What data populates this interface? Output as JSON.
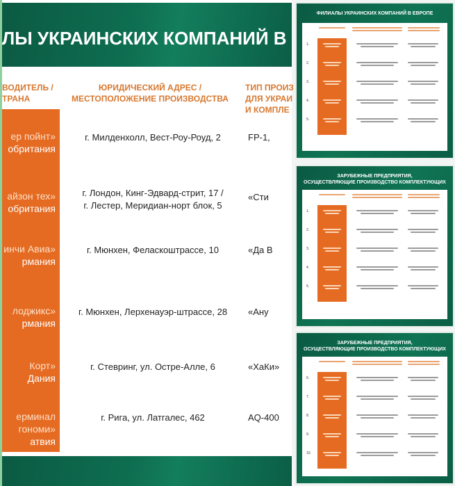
{
  "main_slide": {
    "title": "ЛЫ УКРАИНСКИХ КОМПАНИЙ В",
    "headers": [
      "ВОДИТЕЛЬ /\nТРАНА",
      "ЮРИДИЧЕСКИЙ АДРЕС /\nМЕСТОПОЛОЖЕНИЕ ПРОИЗВОДСТВА",
      "ТИП ПРОИЗ\nДЛЯ УКРАИ\nИ КОМПЛЕ"
    ],
    "rows": [
      {
        "name": "ер пойнт»",
        "country": "обритания",
        "address": "г. Милденхолл, Вест-Роу-Роуд, 2",
        "type": "FP-1,"
      },
      {
        "name": "айзон тех»",
        "country": "обритания",
        "address": "г. Лондон, Кинг-Эдвард-стрит, 17 /\nг. Лестер, Меридиан-норт блок, 5",
        "type": "«Сти"
      },
      {
        "name": "инчи Авиа»",
        "country": "рмания",
        "address": "г. Мюнхен, Феласкоштрассе, 10",
        "type": "«Да В"
      },
      {
        "name": "лоджикс»",
        "country": "рмания",
        "address": "г. Мюнхен, Лерхенауэр-штрассе, 28",
        "type": "«Ану"
      },
      {
        "name": "Корт»",
        "country": "Дания",
        "address": "г. Стевринг, ул. Остре-Алле, 6",
        "type": "«ХаКи»"
      },
      {
        "name": "ерминал\nгономи»",
        "country": "атвия",
        "address": "г. Рига, ул. Латгалес, 462",
        "type": "AQ-400"
      }
    ]
  },
  "thumbnails": [
    {
      "title": "ФИЛИАЛЫ УКРАИНСКИХ КОМПАНИЙ В ЕВРОПЕ",
      "row_numbers": [
        "1.",
        "2.",
        "3.",
        "4.",
        "5."
      ]
    },
    {
      "title": "ЗАРУБЕЖНЫЕ ПРЕДПРИЯТИЯ,\nОСУЩЕСТВЛЯЮЩИЕ ПРОИЗВОДСТВО КОМПЛЕКТУЮЩИХ",
      "row_numbers": [
        "1.",
        "2.",
        "3.",
        "4.",
        "5."
      ]
    },
    {
      "title": "ЗАРУБЕЖНЫЕ ПРЕДПРИЯТИЯ,\nОСУЩЕСТВЛЯЮЩИЕ ПРОИЗВОДСТВО КОМПЛЕКТУЮЩИХ",
      "row_numbers": [
        "6.",
        "7.",
        "8.",
        "9.",
        "10."
      ]
    }
  ],
  "colors": {
    "green": "#0e6e50",
    "orange": "#e56b22",
    "header_text": "#d7782f"
  }
}
